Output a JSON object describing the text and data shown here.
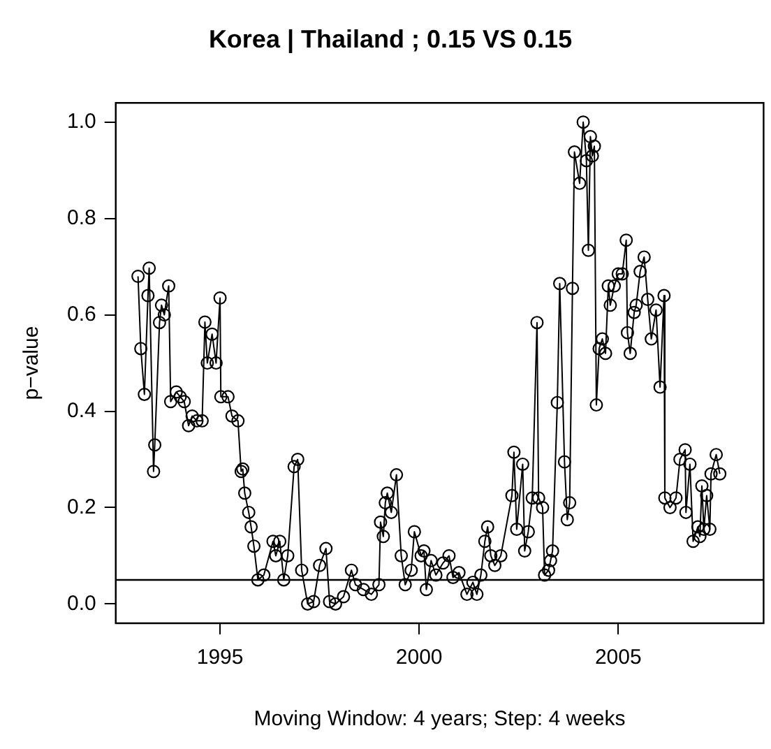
{
  "chart_data": {
    "type": "line",
    "title": "Korea | Thailand ; 0.15 VS 0.15",
    "xlabel": "Moving Window: 4 years; Step: 4 weeks",
    "ylabel": "p−value",
    "series": [
      {
        "color": "#000000",
        "x": [
          1992.94,
          1993.01,
          1993.1,
          1993.19,
          1993.22,
          1993.33,
          1993.36,
          1993.48,
          1993.53,
          1993.6,
          1993.71,
          1993.76,
          1993.9,
          1994.0,
          1994.1,
          1994.21,
          1994.3,
          1994.42,
          1994.55,
          1994.62,
          1994.68,
          1994.8,
          1994.9,
          1995.0,
          1995.02,
          1995.2,
          1995.3,
          1995.45,
          1995.53,
          1995.57,
          1995.62,
          1995.72,
          1995.78,
          1995.85,
          1995.95,
          1996.1,
          1996.33,
          1996.4,
          1996.5,
          1996.6,
          1996.7,
          1996.86,
          1996.95,
          1997.05,
          1997.2,
          1997.35,
          1997.5,
          1997.66,
          1997.75,
          1997.9,
          1998.1,
          1998.3,
          1998.4,
          1998.6,
          1998.8,
          1998.99,
          1999.03,
          1999.1,
          1999.15,
          1999.2,
          1999.3,
          1999.43,
          1999.55,
          1999.65,
          1999.8,
          1999.88,
          2000.05,
          2000.12,
          2000.18,
          2000.3,
          2000.42,
          2000.6,
          2000.75,
          2000.85,
          2001.0,
          2001.2,
          2001.35,
          2001.45,
          2001.55,
          2001.65,
          2001.72,
          2001.8,
          2001.9,
          2002.05,
          2002.33,
          2002.38,
          2002.45,
          2002.6,
          2002.65,
          2002.74,
          2002.84,
          2002.96,
          2003.0,
          2003.1,
          2003.15,
          2003.25,
          2003.3,
          2003.35,
          2003.47,
          2003.53,
          2003.65,
          2003.72,
          2003.78,
          2003.85,
          2003.9,
          2004.03,
          2004.12,
          2004.2,
          2004.25,
          2004.3,
          2004.35,
          2004.4,
          2004.45,
          2004.52,
          2004.6,
          2004.68,
          2004.75,
          2004.8,
          2004.9,
          2005.0,
          2005.1,
          2005.2,
          2005.23,
          2005.3,
          2005.4,
          2005.45,
          2005.55,
          2005.65,
          2005.74,
          2005.83,
          2005.95,
          2006.05,
          2006.15,
          2006.17,
          2006.3,
          2006.45,
          2006.55,
          2006.68,
          2006.7,
          2006.8,
          2006.88,
          2007.0,
          2007.05,
          2007.1,
          2007.15,
          2007.22,
          2007.3,
          2007.33,
          2007.46,
          2007.55
        ],
        "values": [
          0.68,
          0.53,
          0.435,
          0.64,
          0.697,
          0.275,
          0.33,
          0.584,
          0.62,
          0.6,
          0.66,
          0.42,
          0.44,
          0.43,
          0.42,
          0.37,
          0.39,
          0.38,
          0.38,
          0.585,
          0.5,
          0.56,
          0.5,
          0.635,
          0.43,
          0.43,
          0.39,
          0.38,
          0.275,
          0.28,
          0.23,
          0.19,
          0.16,
          0.12,
          0.05,
          0.06,
          0.13,
          0.1,
          0.13,
          0.05,
          0.1,
          0.285,
          0.3,
          0.07,
          0.0,
          0.005,
          0.08,
          0.115,
          0.005,
          0.0,
          0.015,
          0.07,
          0.04,
          0.03,
          0.02,
          0.04,
          0.17,
          0.14,
          0.21,
          0.23,
          0.19,
          0.268,
          0.1,
          0.04,
          0.07,
          0.15,
          0.1,
          0.11,
          0.03,
          0.09,
          0.06,
          0.085,
          0.1,
          0.055,
          0.065,
          0.02,
          0.045,
          0.02,
          0.06,
          0.13,
          0.16,
          0.1,
          0.08,
          0.1,
          0.225,
          0.315,
          0.155,
          0.29,
          0.11,
          0.15,
          0.22,
          0.584,
          0.22,
          0.2,
          0.06,
          0.07,
          0.09,
          0.11,
          0.418,
          0.665,
          0.295,
          0.175,
          0.21,
          0.655,
          0.938,
          0.873,
          1.0,
          0.92,
          0.734,
          0.97,
          0.93,
          0.95,
          0.413,
          0.53,
          0.55,
          0.52,
          0.66,
          0.62,
          0.66,
          0.685,
          0.685,
          0.755,
          0.563,
          0.52,
          0.605,
          0.62,
          0.69,
          0.72,
          0.632,
          0.55,
          0.61,
          0.45,
          0.64,
          0.22,
          0.2,
          0.22,
          0.3,
          0.32,
          0.19,
          0.29,
          0.13,
          0.16,
          0.14,
          0.245,
          0.155,
          0.225,
          0.155,
          0.27,
          0.31,
          0.27
        ]
      }
    ],
    "xlim": [
      1992.38,
      2008.65
    ],
    "xticks": [
      1995,
      2000,
      2005
    ],
    "ylim": [
      -0.04,
      1.04
    ],
    "yticks": [
      {
        "value": 0,
        "label": "0.0"
      },
      {
        "value": 0.2,
        "label": "0.2"
      },
      {
        "value": 0.4,
        "label": "0.4"
      },
      {
        "value": 0.6,
        "label": "0.6"
      },
      {
        "value": 0.8,
        "label": "0.8"
      },
      {
        "value": 1,
        "label": "1.0"
      }
    ],
    "ref_lines": [
      {
        "axis": "y",
        "value": 0.05,
        "color": "#000000"
      }
    ],
    "grid": false,
    "legend": false,
    "marker": "circle",
    "line_style": "solid"
  }
}
